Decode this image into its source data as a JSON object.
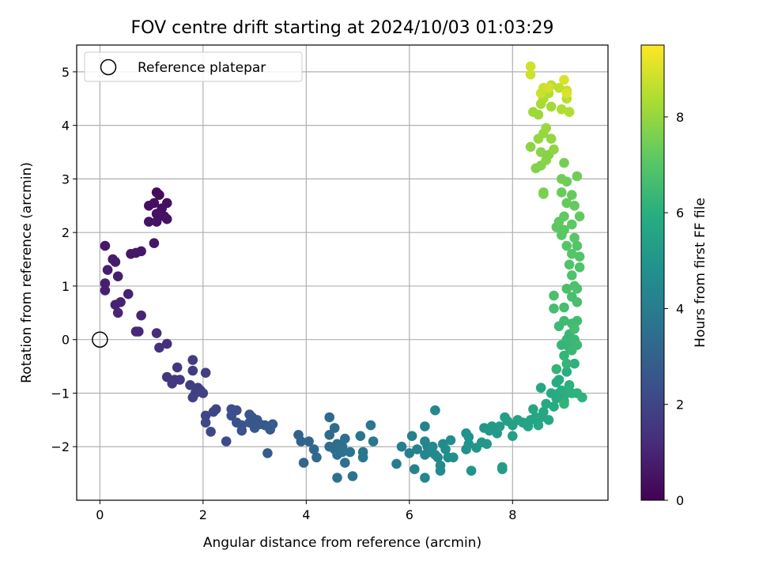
{
  "chart_data": {
    "type": "scatter",
    "title": "FOV centre drift starting at 2024/10/03 01:03:29",
    "xlabel": "Angular distance from reference (arcmin)",
    "ylabel": "Rotation from reference (arcmin)",
    "colorbar_label": "Hours from first FF file",
    "xlim": [
      -0.45,
      9.85
    ],
    "ylim": [
      -3.0,
      5.5
    ],
    "clim": [
      0,
      9.5
    ],
    "xticks": [
      0,
      2,
      4,
      6,
      8
    ],
    "yticks": [
      -2,
      -1,
      0,
      1,
      2,
      3,
      4,
      5
    ],
    "colorbar_ticks": [
      0,
      2,
      4,
      6,
      8
    ],
    "tick_labels": {
      "x": [
        "0",
        "2",
        "4",
        "6",
        "8"
      ],
      "y": [
        "−2",
        "−1",
        "0",
        "1",
        "2",
        "3",
        "4",
        "5"
      ],
      "colorbar": [
        "0",
        "2",
        "4",
        "6",
        "8"
      ]
    },
    "grid": true,
    "colormap": "viridis",
    "legend": {
      "placement": "top-left",
      "entries": [
        {
          "label": "Reference platepar",
          "marker": "open-circle"
        }
      ]
    },
    "reference_point": {
      "x": 0,
      "y": 0
    },
    "series": [
      {
        "points": [
          [
            1.1,
            2.75,
            0.3
          ],
          [
            1.15,
            2.7,
            0.3
          ],
          [
            1.05,
            2.55,
            0.35
          ],
          [
            1.3,
            2.55,
            0.35
          ],
          [
            0.95,
            2.5,
            0.4
          ],
          [
            1.2,
            2.45,
            0.4
          ],
          [
            1.1,
            2.35,
            0.45
          ],
          [
            1.25,
            2.3,
            0.45
          ],
          [
            0.95,
            2.2,
            0.5
          ],
          [
            1.1,
            2.2,
            0.5
          ],
          [
            1.3,
            2.25,
            0.5
          ],
          [
            1.05,
            1.8,
            0.55
          ],
          [
            0.8,
            1.65,
            0.6
          ],
          [
            0.7,
            1.62,
            0.6
          ],
          [
            0.6,
            1.6,
            0.6
          ],
          [
            0.1,
            1.75,
            0.7
          ],
          [
            0.25,
            1.5,
            0.75
          ],
          [
            0.3,
            1.45,
            0.75
          ],
          [
            0.15,
            1.3,
            0.8
          ],
          [
            0.35,
            1.18,
            0.8
          ],
          [
            0.1,
            1.05,
            0.85
          ],
          [
            0.1,
            0.92,
            0.85
          ],
          [
            0.55,
            0.85,
            0.9
          ],
          [
            0.3,
            0.65,
            0.95
          ],
          [
            0.4,
            0.7,
            0.95
          ],
          [
            0.35,
            0.5,
            1.0
          ],
          [
            0.8,
            0.45,
            1.0
          ],
          [
            0.75,
            0.15,
            1.1
          ],
          [
            0.7,
            0.15,
            1.1
          ],
          [
            1.1,
            0.12,
            1.2
          ],
          [
            1.3,
            -0.08,
            1.3
          ],
          [
            1.15,
            -0.15,
            1.3
          ],
          [
            1.5,
            -0.52,
            1.5
          ],
          [
            1.3,
            -0.7,
            1.5
          ],
          [
            1.45,
            -0.75,
            1.55
          ],
          [
            1.55,
            -0.75,
            1.6
          ],
          [
            1.4,
            -0.82,
            1.6
          ],
          [
            1.8,
            -0.38,
            1.7
          ],
          [
            1.8,
            -0.58,
            1.7
          ],
          [
            2.05,
            -0.62,
            1.75
          ],
          [
            1.75,
            -0.85,
            1.75
          ],
          [
            1.9,
            -0.9,
            1.8
          ],
          [
            1.95,
            -0.95,
            1.8
          ],
          [
            1.85,
            -1.0,
            1.85
          ],
          [
            2.0,
            -1.0,
            1.9
          ],
          [
            1.8,
            -1.08,
            1.9
          ],
          [
            2.05,
            -1.42,
            2.0
          ],
          [
            2.25,
            -1.3,
            2.05
          ],
          [
            2.2,
            -1.35,
            2.05
          ],
          [
            2.05,
            -1.55,
            2.1
          ],
          [
            2.15,
            -1.72,
            2.1
          ],
          [
            2.45,
            -1.9,
            2.2
          ],
          [
            2.55,
            -1.3,
            2.3
          ],
          [
            2.65,
            -1.32,
            2.35
          ],
          [
            2.55,
            -1.42,
            2.35
          ],
          [
            2.65,
            -1.55,
            2.4
          ],
          [
            2.75,
            -1.6,
            2.45
          ],
          [
            2.75,
            -1.7,
            2.5
          ],
          [
            2.9,
            -1.4,
            2.55
          ],
          [
            2.95,
            -1.45,
            2.55
          ],
          [
            3.05,
            -1.5,
            2.6
          ],
          [
            2.9,
            -1.55,
            2.6
          ],
          [
            3.1,
            -1.58,
            2.65
          ],
          [
            3.0,
            -1.65,
            2.65
          ],
          [
            3.2,
            -1.6,
            2.7
          ],
          [
            3.3,
            -1.68,
            2.75
          ],
          [
            3.35,
            -1.58,
            2.75
          ],
          [
            3.25,
            -2.12,
            2.8
          ],
          [
            3.85,
            -1.78,
            3.0
          ],
          [
            3.9,
            -1.9,
            3.05
          ],
          [
            4.05,
            -1.9,
            3.1
          ],
          [
            3.95,
            -2.3,
            3.15
          ],
          [
            4.15,
            -2.05,
            3.2
          ],
          [
            4.2,
            -2.2,
            3.25
          ],
          [
            4.45,
            -1.45,
            3.3
          ],
          [
            4.45,
            -1.78,
            3.35
          ],
          [
            4.55,
            -1.65,
            3.35
          ],
          [
            4.6,
            -1.95,
            3.4
          ],
          [
            4.45,
            -2.0,
            3.4
          ],
          [
            4.55,
            -2.05,
            3.45
          ],
          [
            4.6,
            -2.15,
            3.45
          ],
          [
            4.7,
            -2.0,
            3.5
          ],
          [
            4.75,
            -1.85,
            3.5
          ],
          [
            4.7,
            -2.1,
            3.55
          ],
          [
            4.75,
            -2.3,
            3.55
          ],
          [
            4.6,
            -2.58,
            3.6
          ],
          [
            4.9,
            -2.55,
            3.65
          ],
          [
            4.85,
            -2.1,
            3.65
          ],
          [
            5.05,
            -1.8,
            3.7
          ],
          [
            5.1,
            -2.1,
            3.75
          ],
          [
            5.1,
            -2.2,
            3.75
          ],
          [
            5.25,
            -1.6,
            3.8
          ],
          [
            5.3,
            -1.9,
            3.8
          ],
          [
            5.75,
            -2.32,
            4.0
          ],
          [
            5.85,
            -2.0,
            4.05
          ],
          [
            6.0,
            -2.12,
            4.1
          ],
          [
            6.05,
            -1.8,
            4.15
          ],
          [
            6.1,
            -2.42,
            4.2
          ],
          [
            6.15,
            -2.05,
            4.2
          ],
          [
            6.3,
            -1.62,
            4.25
          ],
          [
            6.3,
            -1.9,
            4.3
          ],
          [
            6.35,
            -2.0,
            4.3
          ],
          [
            6.3,
            -2.15,
            4.35
          ],
          [
            6.3,
            -2.58,
            4.35
          ],
          [
            6.4,
            -2.1,
            4.4
          ],
          [
            6.5,
            -1.32,
            4.45
          ],
          [
            6.45,
            -2.0,
            4.45
          ],
          [
            6.5,
            -2.15,
            4.5
          ],
          [
            6.55,
            -2.2,
            4.5
          ],
          [
            6.6,
            -2.35,
            4.55
          ],
          [
            6.6,
            -2.45,
            4.55
          ],
          [
            6.65,
            -1.95,
            4.6
          ],
          [
            6.7,
            -2.05,
            4.6
          ],
          [
            6.75,
            -2.2,
            4.65
          ],
          [
            6.8,
            -1.88,
            4.65
          ],
          [
            6.85,
            -2.2,
            4.7
          ],
          [
            7.1,
            -1.75,
            4.8
          ],
          [
            7.15,
            -1.82,
            4.85
          ],
          [
            7.1,
            -2.05,
            4.85
          ],
          [
            7.15,
            -1.95,
            4.9
          ],
          [
            7.2,
            -2.45,
            4.9
          ],
          [
            7.3,
            -2.02,
            4.95
          ],
          [
            7.4,
            -1.92,
            5.0
          ],
          [
            7.45,
            -1.65,
            5.05
          ],
          [
            7.5,
            -1.95,
            5.05
          ],
          [
            7.55,
            -1.7,
            5.1
          ],
          [
            7.6,
            -1.62,
            5.1
          ],
          [
            7.7,
            -1.65,
            5.15
          ],
          [
            7.7,
            -1.75,
            5.15
          ],
          [
            7.75,
            -1.62,
            5.2
          ],
          [
            7.8,
            -2.38,
            5.25
          ],
          [
            7.8,
            -2.42,
            5.25
          ],
          [
            7.85,
            -1.45,
            5.3
          ],
          [
            7.9,
            -1.52,
            5.35
          ],
          [
            8.0,
            -1.8,
            5.4
          ],
          [
            8.0,
            -1.6,
            5.4
          ],
          [
            8.1,
            -1.5,
            5.45
          ],
          [
            8.2,
            -1.55,
            5.5
          ],
          [
            8.3,
            -1.62,
            5.55
          ],
          [
            8.35,
            -1.5,
            5.55
          ],
          [
            8.4,
            -1.3,
            5.6
          ],
          [
            8.45,
            -1.45,
            5.6
          ],
          [
            8.5,
            -1.6,
            5.65
          ],
          [
            8.55,
            -1.45,
            5.65
          ],
          [
            8.55,
            -0.9,
            5.7
          ],
          [
            8.6,
            -1.35,
            5.7
          ],
          [
            8.65,
            -1.2,
            5.75
          ],
          [
            8.7,
            -1.5,
            5.75
          ],
          [
            8.75,
            -1.0,
            5.8
          ],
          [
            8.8,
            -1.25,
            5.8
          ],
          [
            8.85,
            -0.8,
            5.85
          ],
          [
            8.85,
            -1.1,
            5.85
          ],
          [
            8.9,
            -1.0,
            5.9
          ],
          [
            8.9,
            -0.75,
            5.9
          ],
          [
            8.95,
            -0.95,
            5.95
          ],
          [
            9.0,
            -1.15,
            5.95
          ],
          [
            9.05,
            -0.6,
            6.0
          ],
          [
            9.05,
            -1.0,
            6.0
          ],
          [
            9.1,
            -0.85,
            6.05
          ],
          [
            9.15,
            -1.0,
            6.05
          ],
          [
            9.2,
            -0.45,
            6.1
          ],
          [
            9.25,
            -1.0,
            6.1
          ],
          [
            9.35,
            -1.08,
            6.15
          ],
          [
            9.0,
            -1.2,
            6.2
          ],
          [
            8.85,
            -0.55,
            6.2
          ],
          [
            9.05,
            -0.45,
            6.25
          ],
          [
            9.0,
            -0.3,
            6.25
          ],
          [
            9.1,
            -0.15,
            6.3
          ],
          [
            8.95,
            -0.1,
            6.3
          ],
          [
            9.05,
            0.0,
            6.35
          ],
          [
            9.1,
            0.1,
            6.35
          ],
          [
            9.2,
            0.0,
            6.4
          ],
          [
            9.15,
            -0.2,
            6.4
          ],
          [
            9.25,
            -0.1,
            6.45
          ],
          [
            8.9,
            0.25,
            6.5
          ],
          [
            9.0,
            0.35,
            6.5
          ],
          [
            9.15,
            0.3,
            6.55
          ],
          [
            9.25,
            0.35,
            6.55
          ],
          [
            9.2,
            0.2,
            6.6
          ],
          [
            8.8,
            0.58,
            6.65
          ],
          [
            9.0,
            0.6,
            6.65
          ],
          [
            9.25,
            0.7,
            6.7
          ],
          [
            9.15,
            0.8,
            6.7
          ],
          [
            8.8,
            0.82,
            6.75
          ],
          [
            9.05,
            0.95,
            6.75
          ],
          [
            9.2,
            1.0,
            6.8
          ],
          [
            9.25,
            0.95,
            6.8
          ],
          [
            9.15,
            1.2,
            6.85
          ],
          [
            9.3,
            1.35,
            6.85
          ],
          [
            9.1,
            1.4,
            6.9
          ],
          [
            9.3,
            1.55,
            6.9
          ],
          [
            9.15,
            1.6,
            6.95
          ],
          [
            9.25,
            1.75,
            6.95
          ],
          [
            9.05,
            1.75,
            7.0
          ],
          [
            8.95,
            1.95,
            7.05
          ],
          [
            9.2,
            1.9,
            7.05
          ],
          [
            9.0,
            2.05,
            7.1
          ],
          [
            8.85,
            2.1,
            7.1
          ],
          [
            9.15,
            2.15,
            7.15
          ],
          [
            8.9,
            2.2,
            7.15
          ],
          [
            9.3,
            2.3,
            7.2
          ],
          [
            9.0,
            2.3,
            7.2
          ],
          [
            9.2,
            2.5,
            7.25
          ],
          [
            9.05,
            2.55,
            7.25
          ],
          [
            9.15,
            2.7,
            7.3
          ],
          [
            8.95,
            2.75,
            7.3
          ],
          [
            9.05,
            2.95,
            7.4
          ],
          [
            9.25,
            3.05,
            7.4
          ],
          [
            8.95,
            3.0,
            7.45
          ],
          [
            9.0,
            3.3,
            7.5
          ],
          [
            8.6,
            2.72,
            7.55
          ],
          [
            8.6,
            2.75,
            7.6
          ],
          [
            8.45,
            3.2,
            7.7
          ],
          [
            8.55,
            3.25,
            7.7
          ],
          [
            8.7,
            3.45,
            7.75
          ],
          [
            8.55,
            3.5,
            7.8
          ],
          [
            8.65,
            3.35,
            7.8
          ],
          [
            8.35,
            3.6,
            7.85
          ],
          [
            8.8,
            3.55,
            7.9
          ],
          [
            8.75,
            3.75,
            7.95
          ],
          [
            8.6,
            3.85,
            8.0
          ],
          [
            8.5,
            3.75,
            8.0
          ],
          [
            8.65,
            3.95,
            8.05
          ],
          [
            8.5,
            4.2,
            8.1
          ],
          [
            8.4,
            4.25,
            8.15
          ],
          [
            8.75,
            4.35,
            8.2
          ],
          [
            8.55,
            4.4,
            8.25
          ],
          [
            8.6,
            4.5,
            8.3
          ],
          [
            8.95,
            4.3,
            8.35
          ],
          [
            9.1,
            4.25,
            8.4
          ],
          [
            8.7,
            4.6,
            8.45
          ],
          [
            9.05,
            4.5,
            8.5
          ],
          [
            8.75,
            4.75,
            8.55
          ],
          [
            8.9,
            4.7,
            8.6
          ],
          [
            9.05,
            4.65,
            8.65
          ],
          [
            8.6,
            4.7,
            8.7
          ],
          [
            8.55,
            4.6,
            8.75
          ],
          [
            8.35,
            4.95,
            8.8
          ],
          [
            8.35,
            5.1,
            8.85
          ],
          [
            8.7,
            4.7,
            8.9
          ],
          [
            9.0,
            4.85,
            8.95
          ],
          [
            9.05,
            4.6,
            9.0
          ]
        ]
      }
    ]
  }
}
